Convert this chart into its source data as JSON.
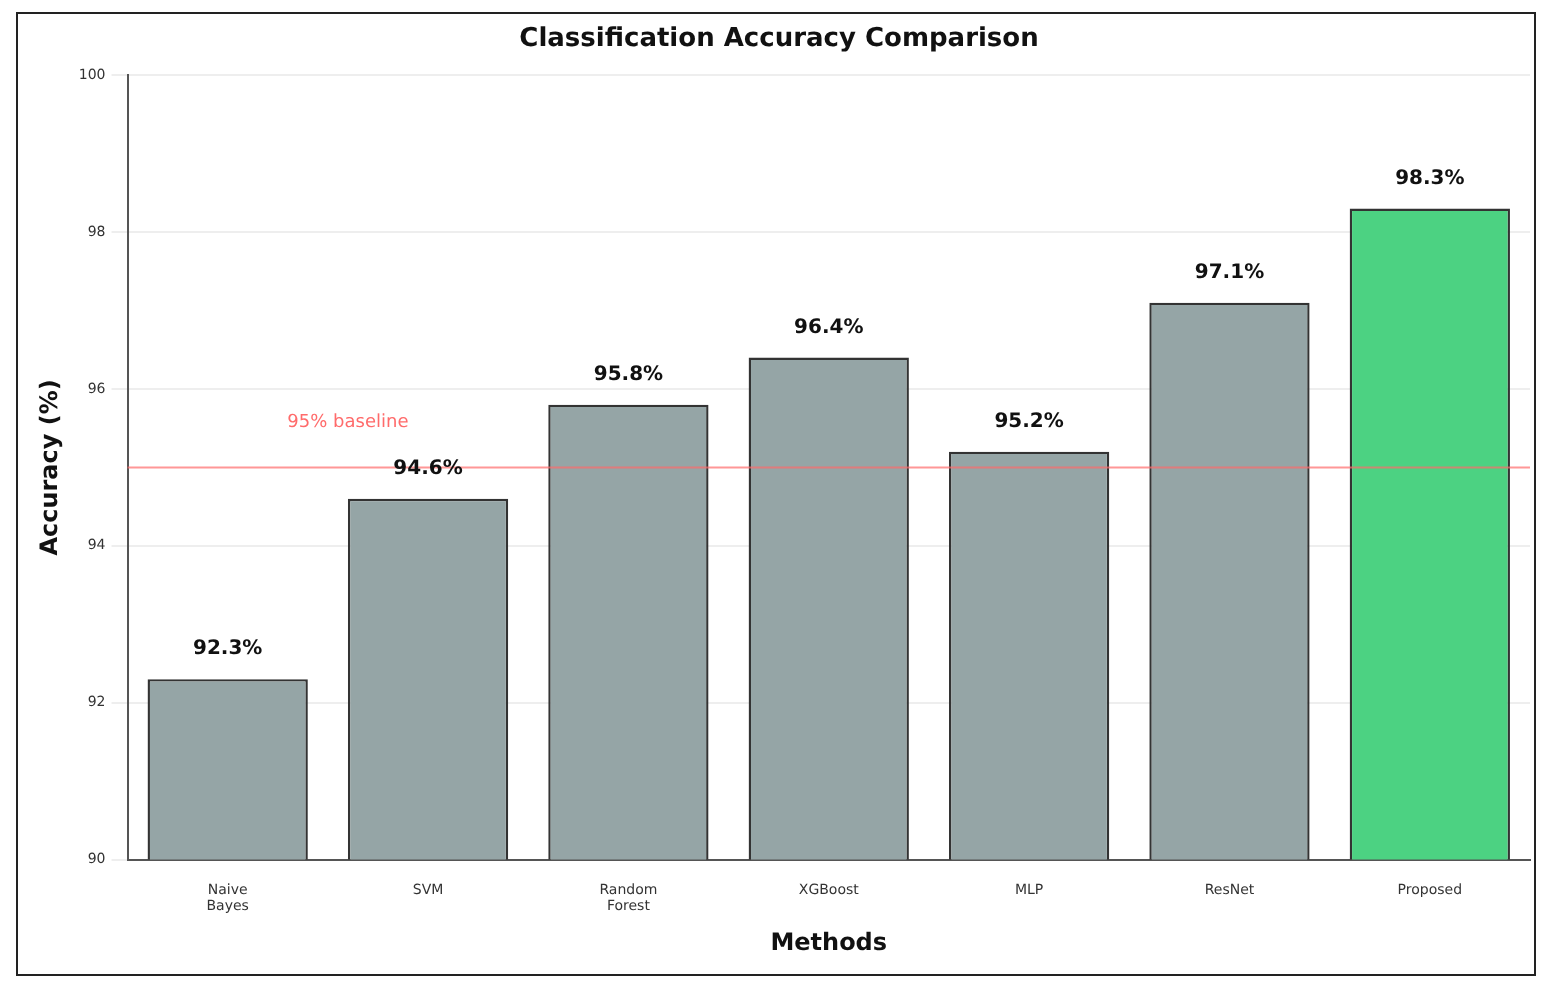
{
  "chart_data": {
    "type": "bar",
    "title": "Classification Accuracy Comparison",
    "xlabel": "Methods",
    "ylabel": "Accuracy (%)",
    "categories": [
      "Naive\nBayes",
      "SVM",
      "Random\nForest",
      "XGBoost",
      "MLP",
      "ResNet",
      "Proposed"
    ],
    "values": [
      92.3,
      94.6,
      95.8,
      96.4,
      95.2,
      97.1,
      98.3
    ],
    "colors": [
      "#95a5a6",
      "#95a5a6",
      "#95a5a6",
      "#95a5a6",
      "#95a5a6",
      "#95a5a6",
      "#4cd282"
    ],
    "value_labels": [
      "92.3%",
      "94.6%",
      "95.8%",
      "96.4%",
      "95.2%",
      "97.1%",
      "98.3%"
    ],
    "ylim": [
      90,
      100
    ],
    "yticks": [
      90,
      92,
      94,
      96,
      98,
      100
    ],
    "grid": "y",
    "ref_lines": [
      {
        "axis": "y",
        "value": 95,
        "label": "95% baseline",
        "color": "#ff6b6b"
      }
    ]
  }
}
